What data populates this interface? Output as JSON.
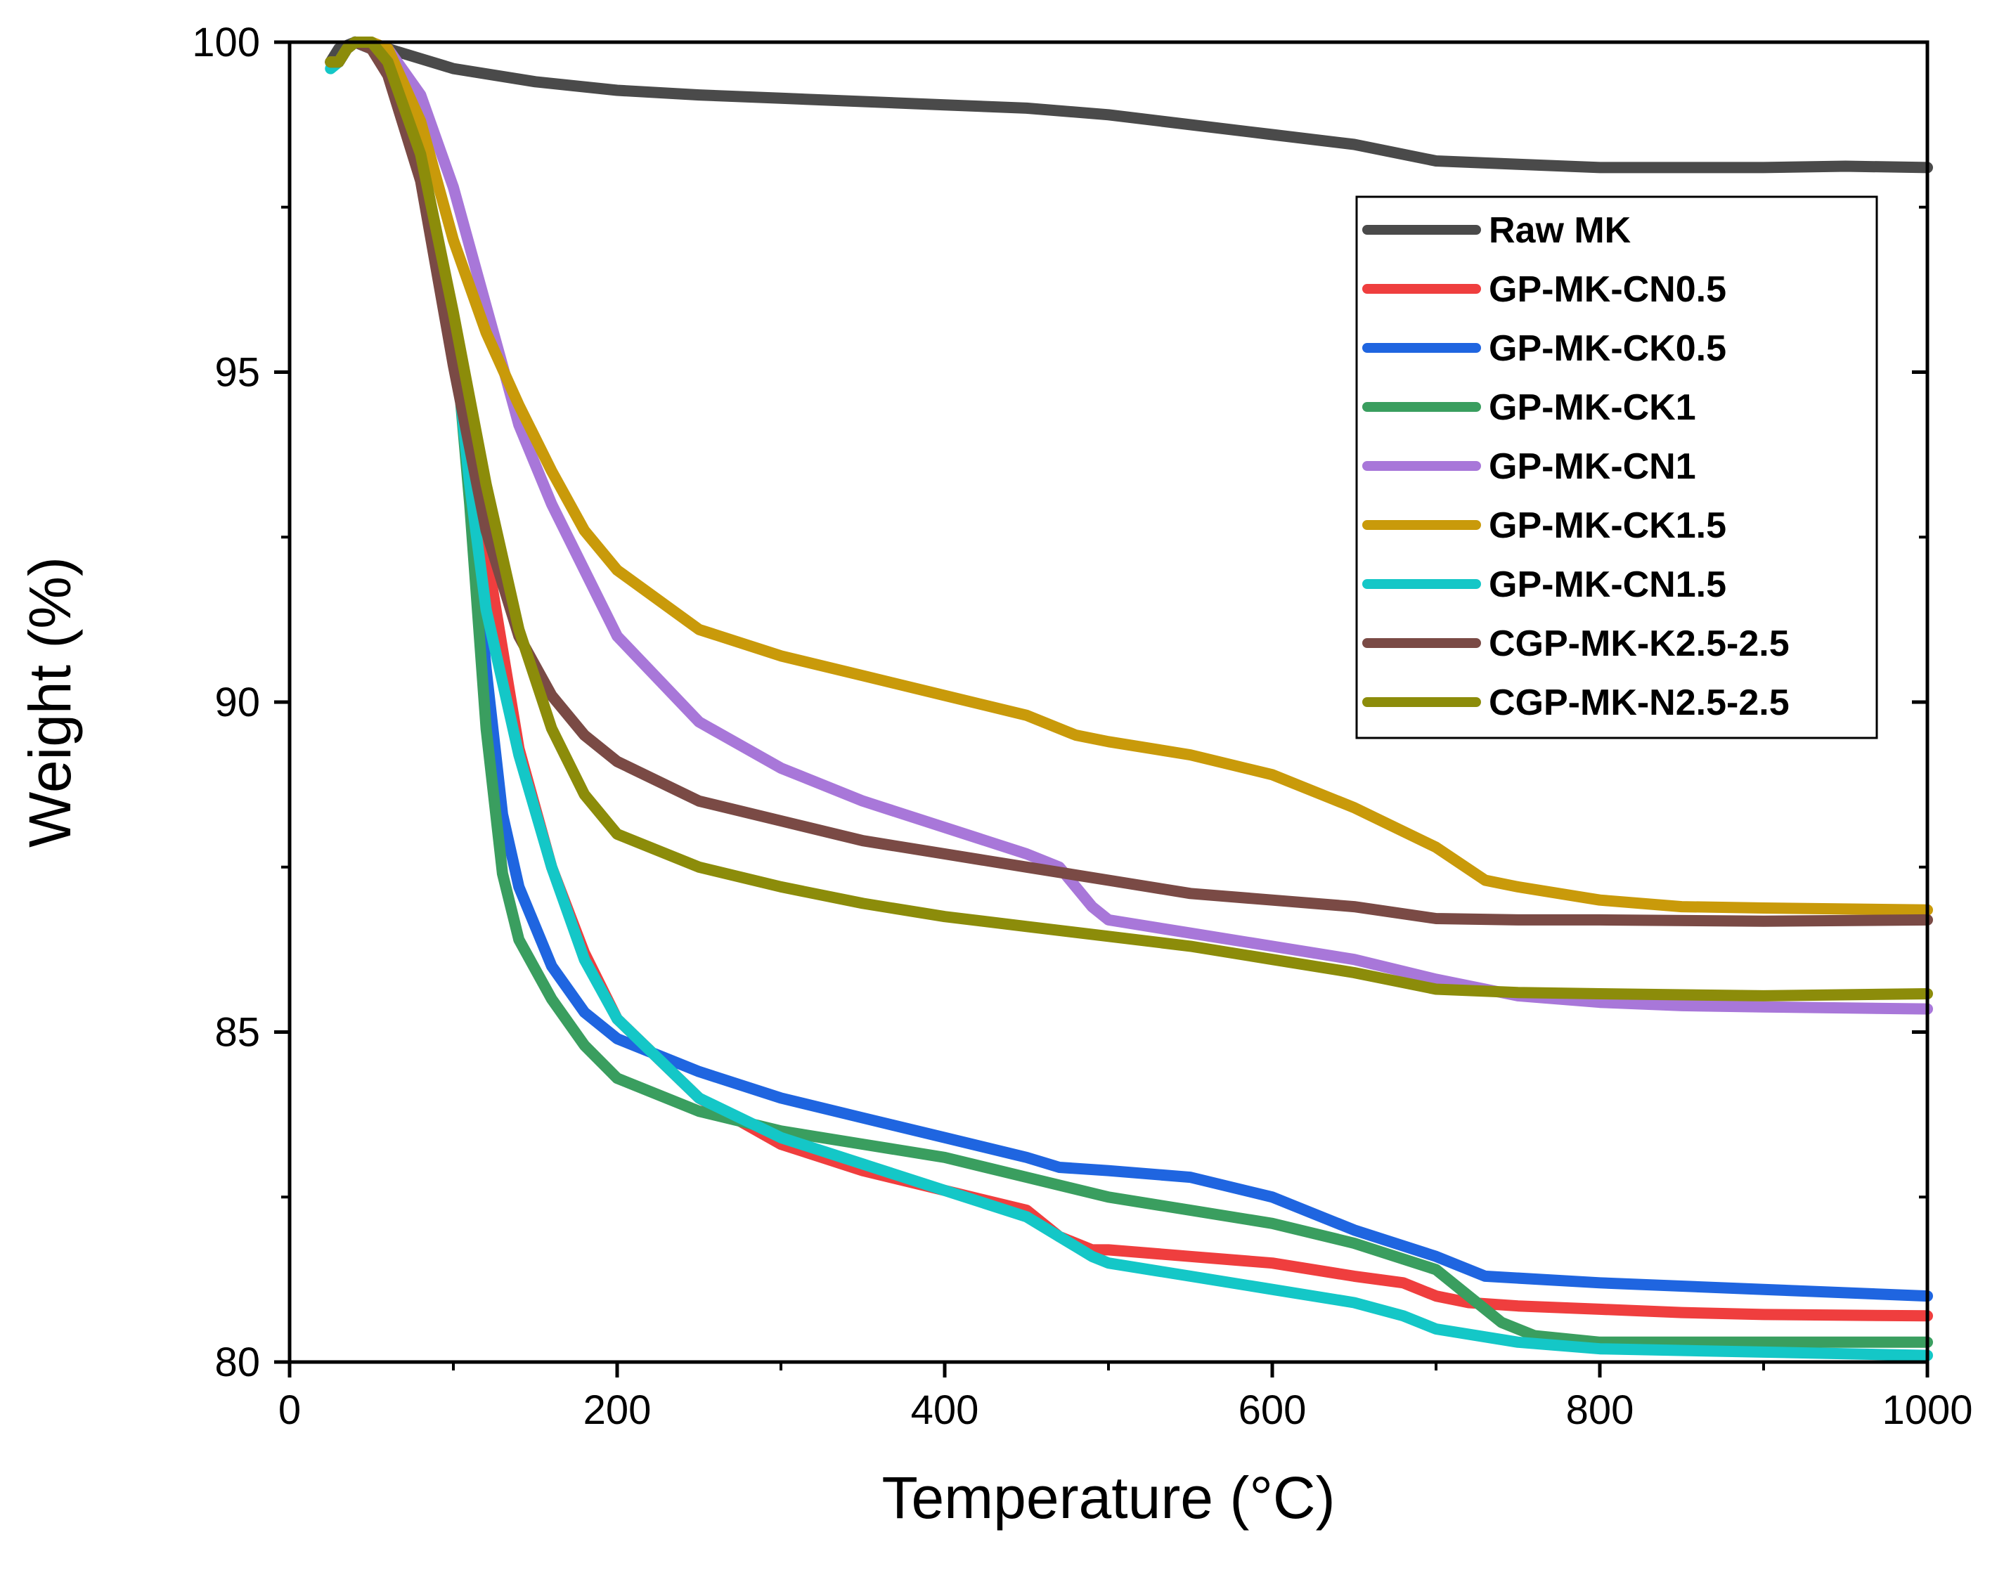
{
  "chart_data": {
    "type": "line",
    "title": "",
    "xlabel": "Temperature (°C)",
    "ylabel": "Weight (%)",
    "xlim": [
      0,
      1000
    ],
    "ylim": [
      80,
      100
    ],
    "xticks": [
      0,
      200,
      400,
      600,
      800,
      1000
    ],
    "yticks": [
      80,
      85,
      90,
      95,
      100
    ],
    "legend_position": "top-right",
    "series": [
      {
        "name": "Raw MK",
        "color": "#4a4a4a",
        "x": [
          25,
          30,
          40,
          50,
          60,
          80,
          100,
          150,
          200,
          250,
          300,
          350,
          400,
          450,
          500,
          550,
          600,
          650,
          700,
          750,
          800,
          850,
          900,
          950,
          1000
        ],
        "y": [
          99.7,
          99.9,
          100.0,
          99.95,
          99.9,
          99.75,
          99.6,
          99.4,
          99.27,
          99.2,
          99.15,
          99.1,
          99.05,
          99.0,
          98.9,
          98.75,
          98.6,
          98.45,
          98.2,
          98.15,
          98.1,
          98.1,
          98.1,
          98.12,
          98.1
        ]
      },
      {
        "name": "GP-MK-CN0.5",
        "color": "#ef3e3e",
        "x": [
          25,
          30,
          35,
          40,
          50,
          60,
          80,
          100,
          120,
          140,
          160,
          180,
          200,
          250,
          300,
          350,
          400,
          450,
          470,
          490,
          500,
          550,
          600,
          650,
          680,
          700,
          720,
          750,
          800,
          850,
          900,
          1000
        ],
        "y": [
          99.7,
          99.7,
          99.9,
          100.0,
          99.9,
          99.6,
          98.3,
          95.8,
          92.3,
          89.3,
          87.5,
          86.2,
          85.2,
          84.0,
          83.3,
          82.9,
          82.6,
          82.3,
          81.9,
          81.7,
          81.7,
          81.6,
          81.5,
          81.3,
          81.2,
          81.0,
          80.9,
          80.85,
          80.8,
          80.75,
          80.72,
          80.7
        ]
      },
      {
        "name": "GP-MK-CK0.5",
        "color": "#1f65e0",
        "x": [
          25,
          30,
          35,
          40,
          50,
          60,
          80,
          100,
          110,
          120,
          130,
          140,
          160,
          180,
          200,
          250,
          300,
          350,
          400,
          450,
          470,
          500,
          550,
          600,
          650,
          700,
          730,
          800,
          900,
          1000
        ],
        "y": [
          99.7,
          99.7,
          99.9,
          100.0,
          99.9,
          99.6,
          98.3,
          95.8,
          93.2,
          90.5,
          88.3,
          87.2,
          86.0,
          85.3,
          84.9,
          84.4,
          84.0,
          83.7,
          83.4,
          83.1,
          82.95,
          82.9,
          82.8,
          82.5,
          82.0,
          81.6,
          81.3,
          81.2,
          81.1,
          81.0
        ]
      },
      {
        "name": "GP-MK-CK1",
        "color": "#3a9e5f",
        "x": [
          25,
          30,
          35,
          40,
          50,
          60,
          80,
          100,
          110,
          120,
          130,
          140,
          160,
          180,
          200,
          250,
          300,
          350,
          400,
          450,
          500,
          550,
          600,
          650,
          700,
          720,
          740,
          760,
          800,
          900,
          1000
        ],
        "y": [
          99.7,
          99.7,
          99.9,
          100.0,
          99.9,
          99.6,
          98.3,
          95.8,
          93.0,
          89.6,
          87.4,
          86.4,
          85.5,
          84.8,
          84.3,
          83.8,
          83.5,
          83.3,
          83.1,
          82.8,
          82.5,
          82.3,
          82.1,
          81.8,
          81.4,
          81.0,
          80.6,
          80.4,
          80.3,
          80.3,
          80.3
        ]
      },
      {
        "name": "GP-MK-CN1",
        "color": "#a877d9",
        "x": [
          25,
          30,
          35,
          40,
          50,
          60,
          80,
          100,
          120,
          140,
          160,
          180,
          200,
          250,
          300,
          350,
          400,
          450,
          470,
          490,
          500,
          550,
          600,
          650,
          700,
          750,
          800,
          850,
          900,
          1000
        ],
        "y": [
          99.7,
          99.7,
          99.9,
          100.0,
          99.9,
          99.9,
          99.2,
          97.8,
          96.0,
          94.2,
          93.0,
          92.0,
          91.0,
          89.7,
          89.0,
          88.5,
          88.1,
          87.7,
          87.5,
          86.9,
          86.7,
          86.5,
          86.3,
          86.1,
          85.8,
          85.55,
          85.45,
          85.4,
          85.38,
          85.35
        ]
      },
      {
        "name": "GP-MK-CK1.5",
        "color": "#c99a0a",
        "x": [
          25,
          30,
          35,
          40,
          50,
          60,
          80,
          100,
          120,
          140,
          160,
          180,
          200,
          250,
          300,
          350,
          400,
          450,
          480,
          500,
          550,
          600,
          650,
          700,
          730,
          750,
          800,
          850,
          900,
          1000
        ],
        "y": [
          99.7,
          99.7,
          99.9,
          100.0,
          100.0,
          99.9,
          98.8,
          97.0,
          95.6,
          94.5,
          93.5,
          92.6,
          92.0,
          91.1,
          90.7,
          90.4,
          90.1,
          89.8,
          89.5,
          89.4,
          89.2,
          88.9,
          88.4,
          87.8,
          87.3,
          87.2,
          87.0,
          86.9,
          86.88,
          86.85
        ]
      },
      {
        "name": "GP-MK-CN1.5",
        "color": "#14c7c7",
        "x": [
          25,
          30,
          35,
          40,
          50,
          60,
          80,
          100,
          110,
          120,
          140,
          160,
          180,
          200,
          250,
          300,
          350,
          400,
          450,
          470,
          490,
          500,
          550,
          600,
          650,
          680,
          700,
          750,
          800,
          900,
          1000
        ],
        "y": [
          99.6,
          99.7,
          99.9,
          100.0,
          99.9,
          99.6,
          98.2,
          95.6,
          93.3,
          91.4,
          89.2,
          87.5,
          86.1,
          85.2,
          84.0,
          83.4,
          83.0,
          82.6,
          82.2,
          81.9,
          81.6,
          81.5,
          81.3,
          81.1,
          80.9,
          80.7,
          80.5,
          80.3,
          80.2,
          80.15,
          80.1
        ]
      },
      {
        "name": "CGP-MK-K2.5-2.5",
        "color": "#7a4a45",
        "x": [
          25,
          30,
          35,
          40,
          50,
          60,
          80,
          100,
          120,
          140,
          160,
          180,
          200,
          250,
          300,
          350,
          400,
          450,
          500,
          550,
          600,
          650,
          700,
          750,
          800,
          900,
          1000
        ],
        "y": [
          99.7,
          99.7,
          99.9,
          100.0,
          99.9,
          99.5,
          97.9,
          95.1,
          92.6,
          91.0,
          90.1,
          89.5,
          89.1,
          88.5,
          88.2,
          87.9,
          87.7,
          87.5,
          87.3,
          87.1,
          87.0,
          86.9,
          86.72,
          86.7,
          86.7,
          86.68,
          86.7
        ]
      },
      {
        "name": "CGP-MK-N2.5-2.5",
        "color": "#8c8c0a",
        "x": [
          25,
          30,
          35,
          40,
          50,
          60,
          80,
          100,
          120,
          140,
          160,
          180,
          200,
          250,
          300,
          350,
          400,
          450,
          500,
          550,
          600,
          650,
          700,
          750,
          800,
          900,
          1000
        ],
        "y": [
          99.7,
          99.7,
          99.9,
          100.0,
          100.0,
          99.7,
          98.3,
          95.9,
          93.3,
          91.1,
          89.6,
          88.6,
          88.0,
          87.5,
          87.2,
          86.95,
          86.75,
          86.6,
          86.45,
          86.3,
          86.1,
          85.9,
          85.65,
          85.6,
          85.58,
          85.55,
          85.58
        ]
      }
    ]
  }
}
